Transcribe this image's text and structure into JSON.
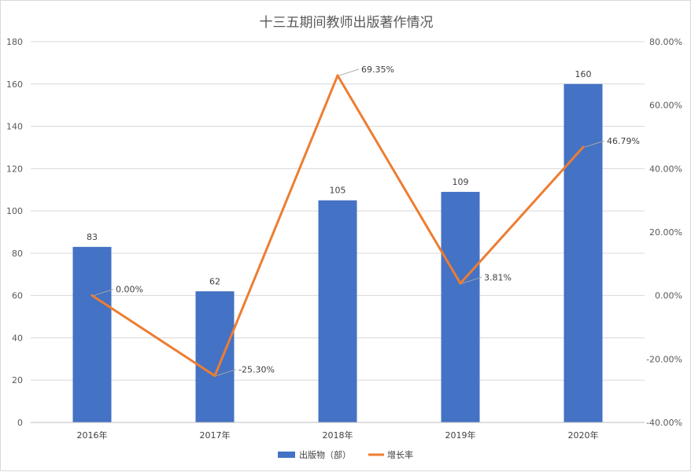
{
  "chart_data": {
    "type": "bar",
    "title": "十三五期间教师出版著作情况",
    "categories": [
      "2016年",
      "2017年",
      "2018年",
      "2019年",
      "2020年"
    ],
    "series": [
      {
        "name": "出版物（部）",
        "type": "bar",
        "axis": "left",
        "color": "#4472c4",
        "values": [
          83,
          62,
          105,
          109,
          160
        ],
        "labels": [
          "83",
          "62",
          "105",
          "109",
          "160"
        ]
      },
      {
        "name": "增长率",
        "type": "line",
        "axis": "right",
        "color": "#ed7d31",
        "values": [
          0.0,
          -25.3,
          69.35,
          3.81,
          46.79
        ],
        "labels": [
          "0.00%",
          "-25.30%",
          "69.35%",
          "3.81%",
          "46.79%"
        ]
      }
    ],
    "y_left": {
      "min": 0,
      "max": 180,
      "step": 20,
      "ticks": [
        "0",
        "20",
        "40",
        "60",
        "80",
        "100",
        "120",
        "140",
        "160",
        "180"
      ]
    },
    "y_right": {
      "min": -40,
      "max": 80,
      "step": 20,
      "ticks": [
        "-40.00%",
        "-20.00%",
        "0.00%",
        "20.00%",
        "40.00%",
        "60.00%",
        "80.00%"
      ]
    },
    "grid": true,
    "legend_position": "bottom"
  }
}
